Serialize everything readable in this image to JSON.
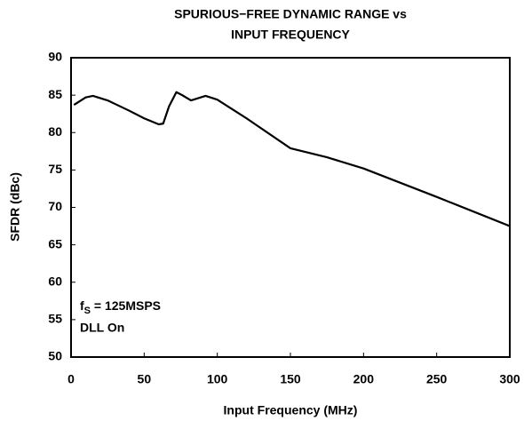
{
  "chart_data": {
    "type": "line",
    "title": [
      "SPURIOUS−FREE DYNAMIC RANGE vs",
      "INPUT FREQUENCY"
    ],
    "x_label": "Input Frequency (MHz)",
    "y_label": "SFDR (dBc)",
    "annotations": [
      {
        "main": "f",
        "sub": "S",
        "after": " = 125MSPS"
      },
      "DLL On"
    ],
    "x": [
      2,
      10,
      15,
      25,
      40,
      50,
      60,
      63,
      67,
      72,
      76,
      82,
      92,
      100,
      120,
      150,
      175,
      200,
      250,
      300
    ],
    "series": [
      {
        "color": "#000000",
        "values": [
          83.7,
          84.7,
          84.9,
          84.3,
          82.9,
          81.9,
          81.1,
          81.2,
          83.5,
          85.4,
          85.0,
          84.3,
          84.9,
          84.4,
          81.9,
          77.9,
          76.7,
          75.2,
          71.4,
          67.5
        ]
      }
    ],
    "xlim": [
      0,
      300
    ],
    "xticks": [
      0,
      50,
      100,
      150,
      200,
      250,
      300
    ],
    "ylim": [
      50,
      90
    ],
    "yticks": [
      50,
      55,
      60,
      65,
      70,
      75,
      80,
      85,
      90
    ],
    "grid": false
  }
}
